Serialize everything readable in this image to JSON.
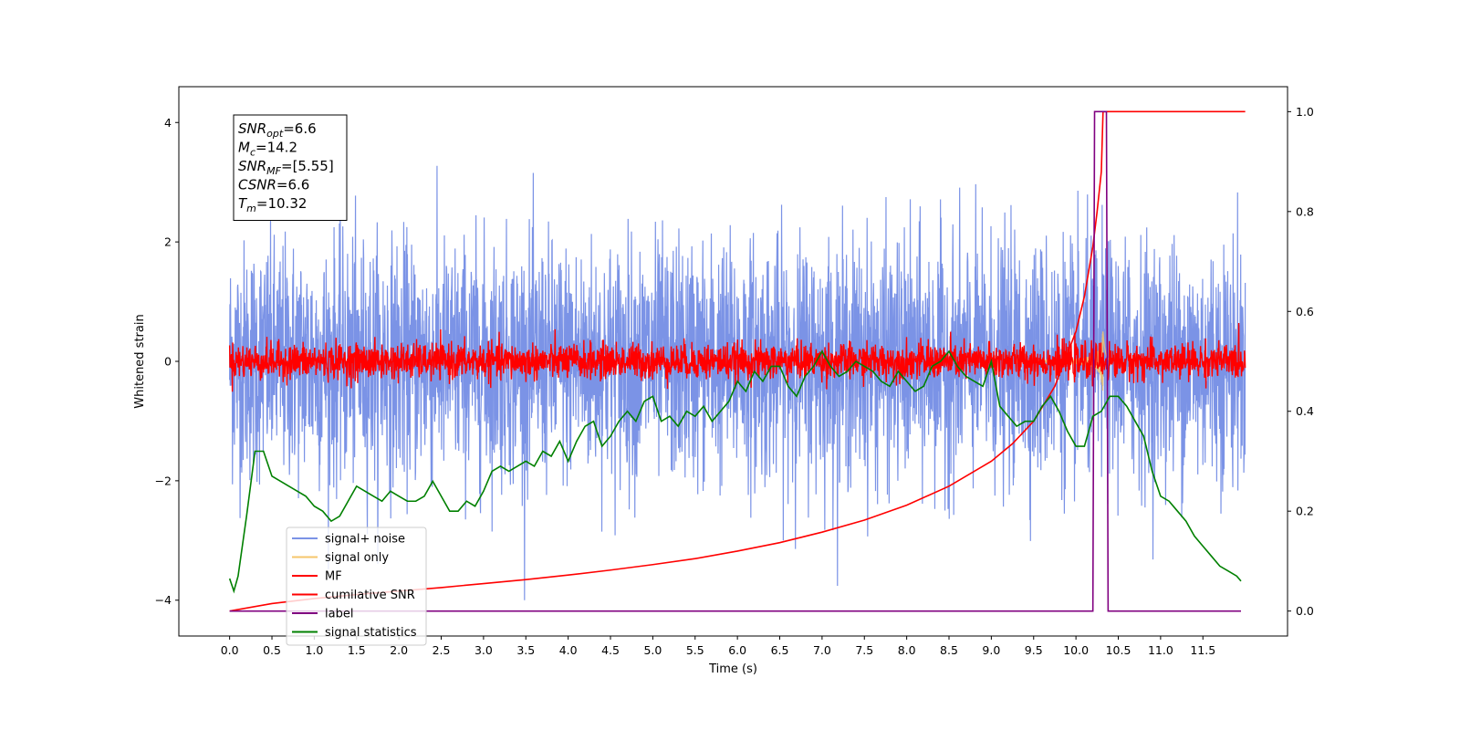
{
  "chart_data": {
    "type": "line",
    "xlabel": "Time (s)",
    "ylabel": "Whitened strain",
    "xlim": [
      -0.6,
      12.5
    ],
    "ylim": [
      -4.6,
      4.6
    ],
    "y2lim": [
      -0.05,
      1.05
    ],
    "x_ticks": [
      0.0,
      0.5,
      1.0,
      1.5,
      2.0,
      2.5,
      3.0,
      3.5,
      4.0,
      4.5,
      5.0,
      5.5,
      6.0,
      6.5,
      7.0,
      7.5,
      8.0,
      8.5,
      9.0,
      9.5,
      10.0,
      10.5,
      11.0,
      11.5
    ],
    "x_tick_labels": [
      "0.0",
      "0.5",
      "1.0",
      "1.5",
      "2.0",
      "2.5",
      "3.0",
      "3.5",
      "4.0",
      "4.5",
      "5.0",
      "5.5",
      "6.0",
      "6.5",
      "7.0",
      "7.5",
      "8.0",
      "8.5",
      "9.0",
      "9.5",
      "10.0",
      "10.5",
      "11.0",
      "11.5"
    ],
    "y_ticks": [
      4,
      2,
      0,
      -2,
      -4
    ],
    "y_tick_labels": [
      "4",
      "2",
      "0",
      "−2",
      "−4"
    ],
    "y2_ticks": [
      1.0,
      0.8,
      0.6,
      0.4,
      0.2,
      0.0
    ],
    "y2_tick_labels": [
      "1.0",
      "0.8",
      "0.6",
      "0.4",
      "0.2",
      "0.0"
    ],
    "grid": false,
    "legend_position": "lower-left",
    "series": [
      {
        "name": "signal+ noise",
        "color": "#7b93e6",
        "axis": "left",
        "kind": "noise",
        "x_range": [
          0,
          12
        ],
        "amplitude_std": 1.0,
        "amplitude_max": 4.0
      },
      {
        "name": "signal only",
        "color": "#f5c66b",
        "axis": "left",
        "kind": "chirp",
        "peak_time": 10.32,
        "peak_amplitude": 0.6
      },
      {
        "name": "MF",
        "color": "#ff0000",
        "axis": "left",
        "kind": "noise",
        "x_range": [
          0,
          12
        ],
        "amplitude_std": 0.15,
        "amplitude_max": 0.9
      },
      {
        "name": "cumilative SNR",
        "color": "#ff0000",
        "axis": "right",
        "x": [
          0.0,
          0.5,
          1.0,
          1.5,
          2.0,
          2.5,
          3.0,
          3.5,
          4.0,
          4.5,
          5.0,
          5.5,
          6.0,
          6.5,
          7.0,
          7.5,
          8.0,
          8.5,
          9.0,
          9.25,
          9.5,
          9.75,
          10.0,
          10.1,
          10.2,
          10.25,
          10.3,
          10.32,
          12.0
        ],
        "y": [
          0.0,
          0.015,
          0.025,
          0.033,
          0.04,
          0.047,
          0.055,
          0.063,
          0.072,
          0.082,
          0.093,
          0.105,
          0.12,
          0.137,
          0.158,
          0.182,
          0.212,
          0.25,
          0.3,
          0.335,
          0.38,
          0.45,
          0.56,
          0.63,
          0.73,
          0.8,
          0.88,
          1.0,
          1.0
        ]
      },
      {
        "name": "label",
        "color": "#800080",
        "axis": "right",
        "x": [
          0.0,
          10.2,
          10.22,
          10.36,
          10.38,
          11.95
        ],
        "y": [
          0.0,
          0.0,
          1.0,
          1.0,
          0.0,
          0.0
        ]
      },
      {
        "name": "signal statistics",
        "color": "#008000",
        "axis": "right",
        "x": [
          0.0,
          0.05,
          0.1,
          0.2,
          0.3,
          0.4,
          0.5,
          0.6,
          0.7,
          0.8,
          0.9,
          1.0,
          1.1,
          1.2,
          1.3,
          1.4,
          1.5,
          1.6,
          1.7,
          1.8,
          1.9,
          2.0,
          2.1,
          2.2,
          2.3,
          2.4,
          2.5,
          2.6,
          2.7,
          2.8,
          2.9,
          3.0,
          3.1,
          3.2,
          3.3,
          3.4,
          3.5,
          3.6,
          3.7,
          3.8,
          3.9,
          4.0,
          4.1,
          4.2,
          4.3,
          4.4,
          4.5,
          4.6,
          4.7,
          4.8,
          4.9,
          5.0,
          5.1,
          5.2,
          5.3,
          5.4,
          5.5,
          5.6,
          5.7,
          5.8,
          5.9,
          6.0,
          6.1,
          6.2,
          6.3,
          6.4,
          6.5,
          6.6,
          6.7,
          6.8,
          6.9,
          7.0,
          7.1,
          7.2,
          7.3,
          7.4,
          7.5,
          7.6,
          7.7,
          7.8,
          7.9,
          8.0,
          8.1,
          8.2,
          8.3,
          8.4,
          8.5,
          8.6,
          8.7,
          8.8,
          8.9,
          9.0,
          9.1,
          9.2,
          9.3,
          9.4,
          9.5,
          9.6,
          9.7,
          9.8,
          9.9,
          10.0,
          10.1,
          10.2,
          10.3,
          10.4,
          10.5,
          10.6,
          10.7,
          10.8,
          10.9,
          11.0,
          11.1,
          11.2,
          11.3,
          11.4,
          11.5,
          11.6,
          11.7,
          11.8,
          11.9,
          11.95
        ],
        "y": [
          0.065,
          0.04,
          0.07,
          0.19,
          0.32,
          0.32,
          0.27,
          0.26,
          0.25,
          0.24,
          0.23,
          0.21,
          0.2,
          0.18,
          0.19,
          0.22,
          0.25,
          0.24,
          0.23,
          0.22,
          0.24,
          0.23,
          0.22,
          0.22,
          0.23,
          0.26,
          0.23,
          0.2,
          0.2,
          0.22,
          0.21,
          0.24,
          0.28,
          0.29,
          0.28,
          0.29,
          0.3,
          0.29,
          0.32,
          0.31,
          0.34,
          0.3,
          0.34,
          0.37,
          0.38,
          0.33,
          0.35,
          0.38,
          0.4,
          0.38,
          0.42,
          0.43,
          0.38,
          0.39,
          0.37,
          0.4,
          0.39,
          0.41,
          0.38,
          0.4,
          0.42,
          0.46,
          0.44,
          0.48,
          0.46,
          0.49,
          0.49,
          0.45,
          0.43,
          0.47,
          0.49,
          0.52,
          0.49,
          0.47,
          0.48,
          0.5,
          0.49,
          0.48,
          0.46,
          0.45,
          0.48,
          0.46,
          0.44,
          0.45,
          0.49,
          0.5,
          0.52,
          0.49,
          0.47,
          0.46,
          0.45,
          0.5,
          0.41,
          0.39,
          0.37,
          0.38,
          0.38,
          0.41,
          0.43,
          0.4,
          0.36,
          0.33,
          0.33,
          0.39,
          0.4,
          0.43,
          0.43,
          0.41,
          0.38,
          0.35,
          0.28,
          0.23,
          0.22,
          0.2,
          0.18,
          0.15,
          0.13,
          0.11,
          0.09,
          0.08,
          0.07,
          0.06
        ]
      }
    ],
    "annotation": {
      "lines": [
        {
          "symbol": "SNR",
          "sub": "opt",
          "rest": "=6.6"
        },
        {
          "symbol": "M",
          "sub": "c",
          "rest": "=14.2"
        },
        {
          "symbol": "SNR",
          "sub": "MF",
          "rest": "=[5.55]"
        },
        {
          "symbol": "CSNR",
          "sub": "",
          "rest": "=6.6"
        },
        {
          "symbol": "T",
          "sub": "m",
          "rest": "=10.32"
        }
      ]
    }
  }
}
